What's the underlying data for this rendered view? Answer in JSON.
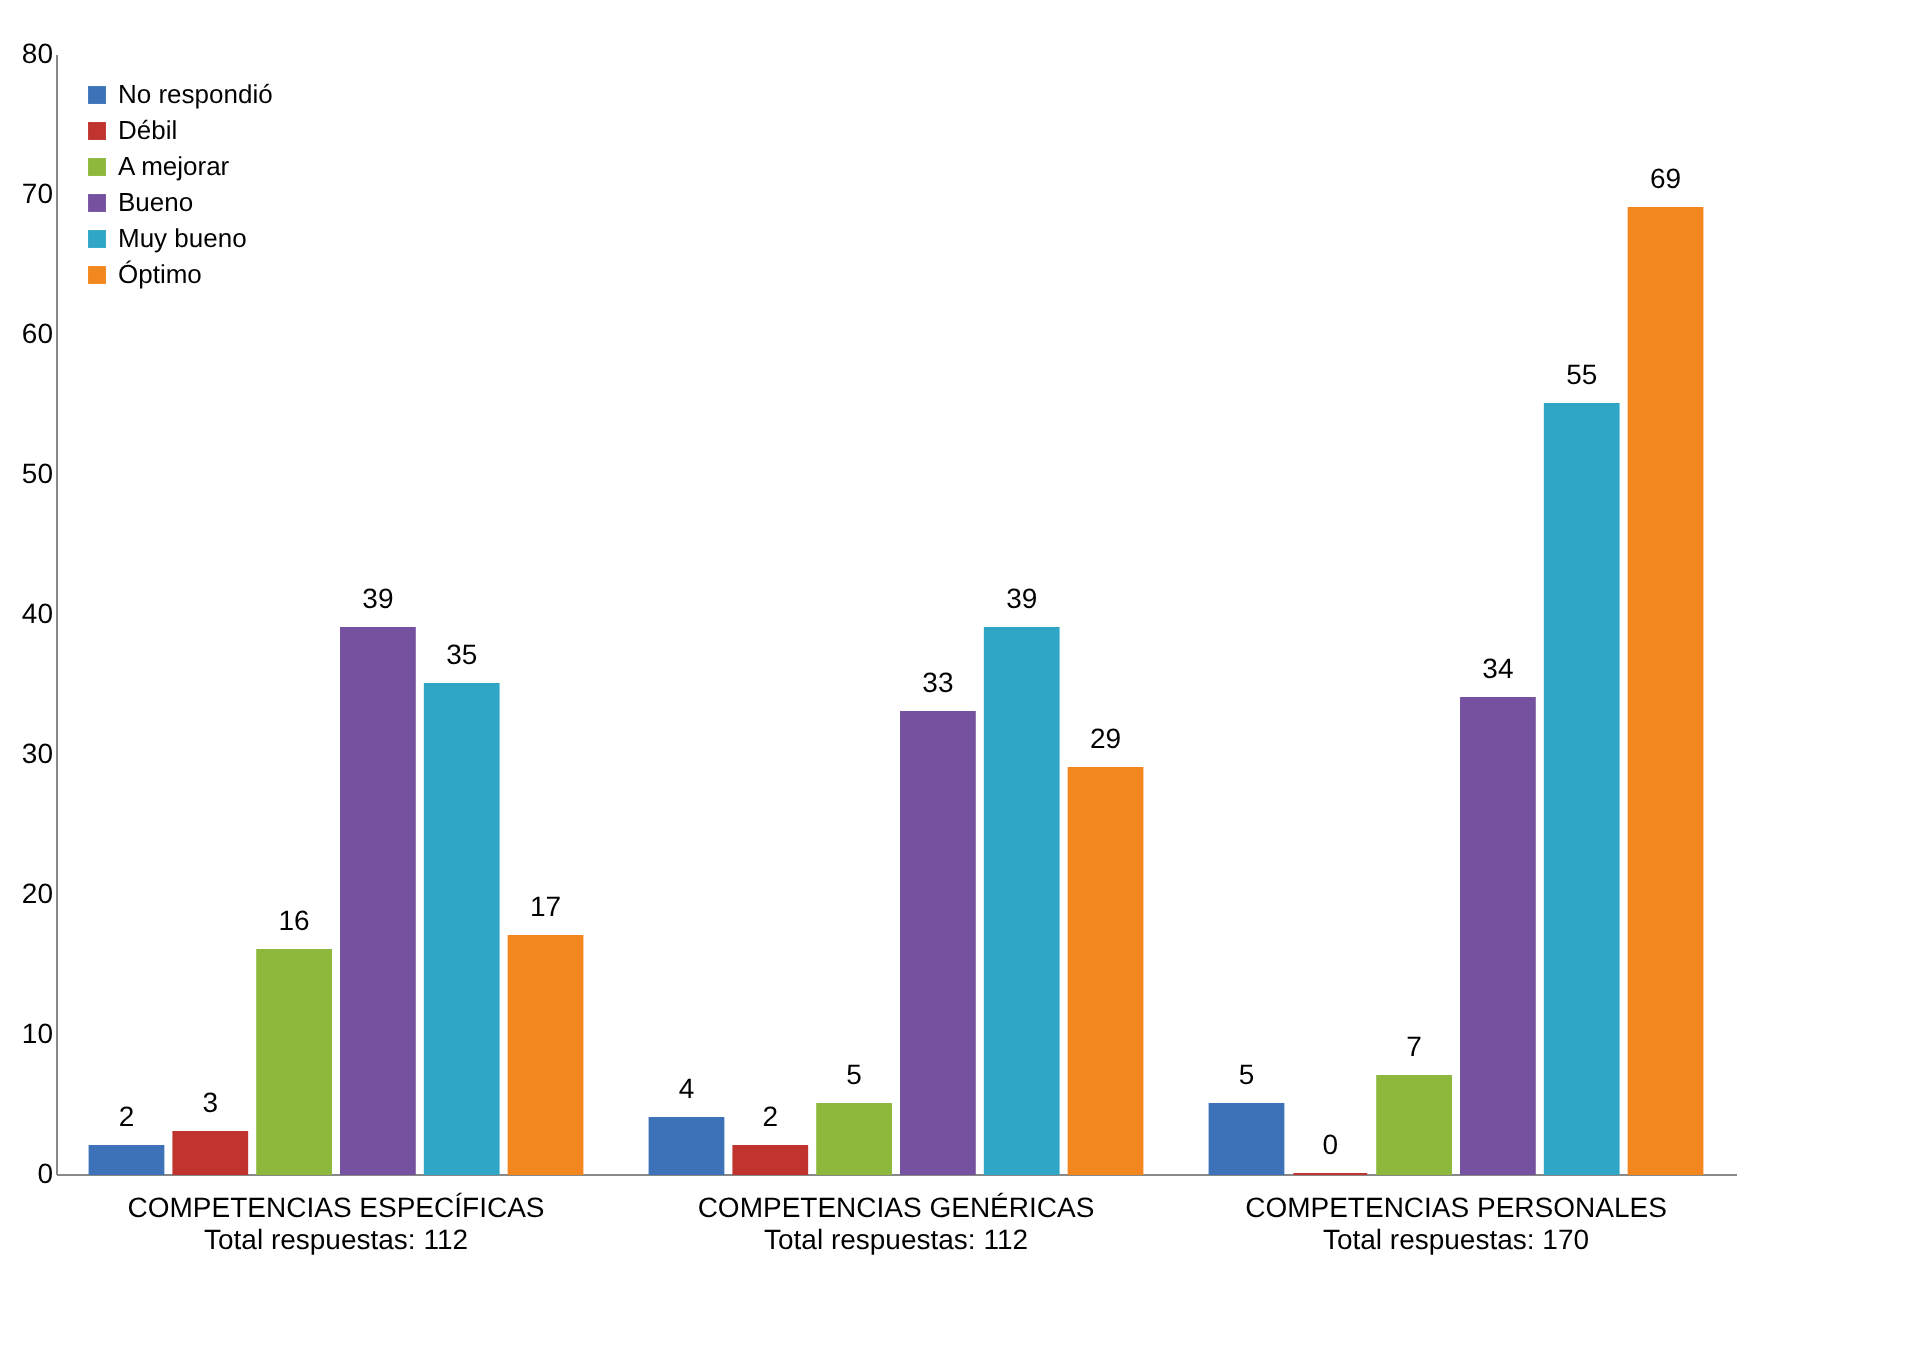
{
  "chart_data": {
    "type": "bar",
    "categories": [
      "COMPETENCIAS ESPECÍFICAS\nTotal respuestas: 112",
      "COMPETENCIAS GENÉRICAS\nTotal respuestas: 112",
      "COMPETENCIAS PERSONALES\nTotal respuestas: 170"
    ],
    "series": [
      {
        "name": "No respondió",
        "color": "#3d72b8",
        "values": [
          2,
          4,
          5
        ]
      },
      {
        "name": "Débil",
        "color": "#c0332e",
        "values": [
          3,
          2,
          0
        ]
      },
      {
        "name": "A mejorar",
        "color": "#8db83c",
        "values": [
          16,
          5,
          7
        ]
      },
      {
        "name": "Bueno",
        "color": "#7551a0",
        "values": [
          39,
          33,
          34
        ]
      },
      {
        "name": "Muy bueno",
        "color": "#30a6c6",
        "values": [
          35,
          39,
          55
        ]
      },
      {
        "name": "Óptimo",
        "color": "#f3871f",
        "values": [
          17,
          29,
          69
        ]
      }
    ],
    "ylim": [
      0,
      80
    ],
    "yticks": [
      0,
      10,
      20,
      30,
      40,
      50,
      60,
      70,
      80
    ],
    "data_labels": true,
    "legend": "top left",
    "grid": false
  }
}
